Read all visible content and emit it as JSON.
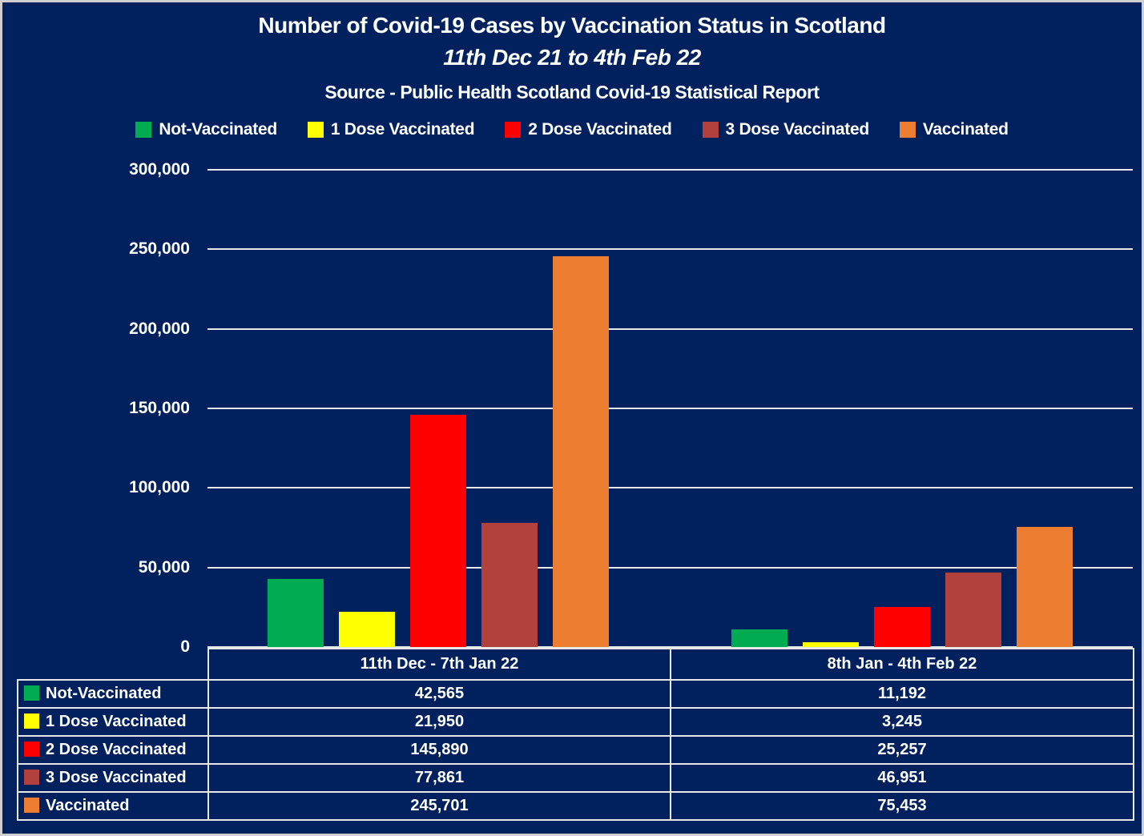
{
  "header": {
    "title": "Number of Covid-19 Cases by Vaccination Status in Scotland",
    "subtitle": "11th Dec 21 to 4th Feb 22",
    "source": "Source - Public Health Scotland Covid-19 Statistical Report"
  },
  "colors": {
    "background": "#01215E",
    "gridline": "#E8E8E8",
    "text": "#FFFFFF",
    "outer_border": "#CFCFCF"
  },
  "chart_data": {
    "type": "bar",
    "title": "Number of Covid-19 Cases by Vaccination Status in Scotland",
    "subtitle": "11th Dec 21 to 4th Feb 22",
    "source": "Source - Public Health Scotland Covid-19 Statistical Report",
    "categories": [
      "11th Dec - 7th Jan 22",
      "8th Jan - 4th Feb 22"
    ],
    "series": [
      {
        "name": "Not-Vaccinated",
        "color": "#00AB51",
        "values": [
          42565,
          11192
        ],
        "labels": [
          "42,565",
          "11,192"
        ]
      },
      {
        "name": "1 Dose Vaccinated",
        "color": "#FFFF00",
        "values": [
          21950,
          3245
        ],
        "labels": [
          "21,950",
          "3,245"
        ]
      },
      {
        "name": "2 Dose Vaccinated",
        "color": "#FF0000",
        "values": [
          145890,
          25257
        ],
        "labels": [
          "145,890",
          "25,257"
        ]
      },
      {
        "name": "3 Dose Vaccinated",
        "color": "#B2413E",
        "values": [
          77861,
          46951
        ],
        "labels": [
          "77,861",
          "46,951"
        ]
      },
      {
        "name": "Vaccinated",
        "color": "#ED7D31",
        "values": [
          245701,
          75453
        ],
        "labels": [
          "245,701",
          "75,453"
        ]
      }
    ],
    "y_axis": {
      "min": 0,
      "max": 300000,
      "tick_interval": 50000,
      "tick_labels": [
        "300,000",
        "250,000",
        "200,000",
        "150,000",
        "100,000",
        "50,000",
        "0"
      ]
    },
    "legend_position": "top",
    "grid": true,
    "data_table_shown": true
  }
}
